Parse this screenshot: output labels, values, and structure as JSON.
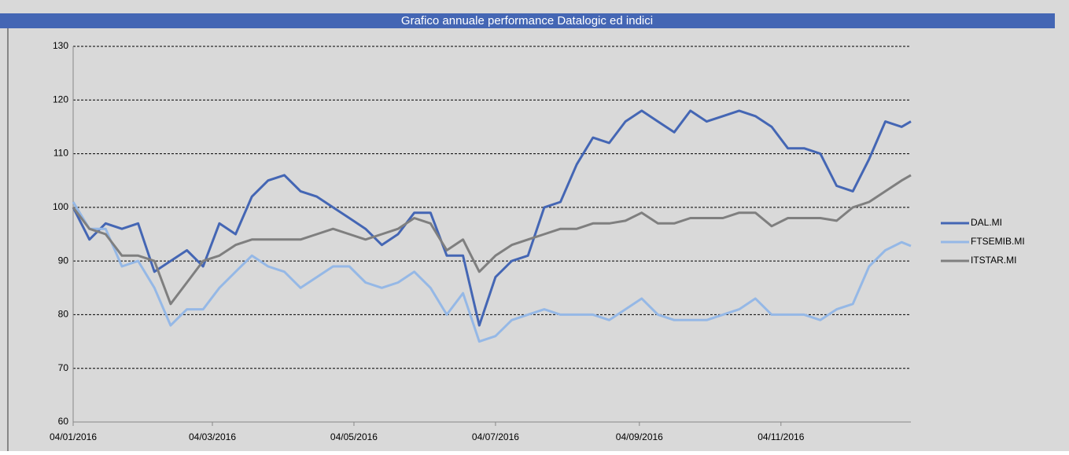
{
  "chart_data": {
    "type": "line",
    "title": "Grafico annuale performance Datalogic ed indici",
    "x": [
      "2016-01-04",
      "2016-01-11",
      "2016-01-18",
      "2016-01-25",
      "2016-02-01",
      "2016-02-08",
      "2016-02-15",
      "2016-02-22",
      "2016-02-29",
      "2016-03-07",
      "2016-03-14",
      "2016-03-21",
      "2016-03-28",
      "2016-04-04",
      "2016-04-11",
      "2016-04-18",
      "2016-04-25",
      "2016-05-02",
      "2016-05-09",
      "2016-05-16",
      "2016-05-23",
      "2016-05-30",
      "2016-06-06",
      "2016-06-13",
      "2016-06-20",
      "2016-06-27",
      "2016-07-04",
      "2016-07-11",
      "2016-07-18",
      "2016-07-25",
      "2016-08-01",
      "2016-08-08",
      "2016-08-15",
      "2016-08-22",
      "2016-08-29",
      "2016-09-05",
      "2016-09-12",
      "2016-09-19",
      "2016-09-26",
      "2016-10-03",
      "2016-10-10",
      "2016-10-17",
      "2016-10-24",
      "2016-10-31",
      "2016-11-07",
      "2016-11-14",
      "2016-11-21",
      "2016-11-28",
      "2016-12-05",
      "2016-12-12",
      "2016-12-19",
      "2016-12-26",
      "2016-12-30"
    ],
    "series": [
      {
        "name": "DAL.MI",
        "color": "#4466b4",
        "values": [
          100,
          94,
          97,
          96,
          97,
          88,
          90,
          92,
          89,
          97,
          95,
          102,
          105,
          106,
          103,
          102,
          100,
          98,
          96,
          93,
          95,
          99,
          99,
          91,
          91,
          78,
          87,
          90,
          91,
          100,
          101,
          108,
          113,
          112,
          116,
          118,
          116,
          114,
          118,
          116,
          117,
          118,
          117,
          115,
          111,
          111,
          110,
          104,
          103,
          109,
          116,
          115,
          116
        ]
      },
      {
        "name": "FTSEMIB.MI",
        "color": "#95b8e6",
        "values": [
          101,
          96,
          96,
          89,
          90,
          85,
          78,
          81,
          81,
          85,
          88,
          91,
          89,
          88,
          85,
          87,
          89,
          89,
          86,
          85,
          86,
          88,
          85,
          80,
          84,
          75,
          76,
          79,
          80,
          81,
          80,
          80,
          80,
          79,
          81,
          83,
          80,
          79,
          79,
          79,
          80,
          81,
          83,
          80,
          80,
          80,
          79,
          81,
          82,
          89,
          92,
          93.5,
          92.8
        ]
      },
      {
        "name": "ITSTAR.MI",
        "color": "#7f7f7f",
        "values": [
          100,
          96,
          95,
          91,
          91,
          90,
          82,
          86,
          90,
          91,
          93,
          94,
          94,
          94,
          94,
          95,
          96,
          95,
          94,
          95,
          96,
          98,
          97,
          92,
          94,
          88,
          91,
          93,
          94,
          95,
          96,
          96,
          97,
          97,
          97.5,
          99,
          97,
          97,
          98,
          98,
          98,
          99,
          99,
          96.5,
          98,
          98,
          98,
          97.5,
          100,
          101,
          103,
          105,
          106
        ]
      }
    ],
    "xlim": [
      "2016-01-04",
      "2016-12-30"
    ],
    "xticks": [
      {
        "value": "2016-01-04",
        "label": "04/01/2016"
      },
      {
        "value": "2016-03-04",
        "label": "04/03/2016"
      },
      {
        "value": "2016-05-04",
        "label": "04/05/2016"
      },
      {
        "value": "2016-07-04",
        "label": "04/07/2016"
      },
      {
        "value": "2016-09-04",
        "label": "04/09/2016"
      },
      {
        "value": "2016-11-04",
        "label": "04/11/2016"
      }
    ],
    "ylim": [
      60,
      130
    ],
    "yticks": [
      60,
      70,
      80,
      90,
      100,
      110,
      120,
      130
    ],
    "grid": true,
    "legend": "right"
  }
}
